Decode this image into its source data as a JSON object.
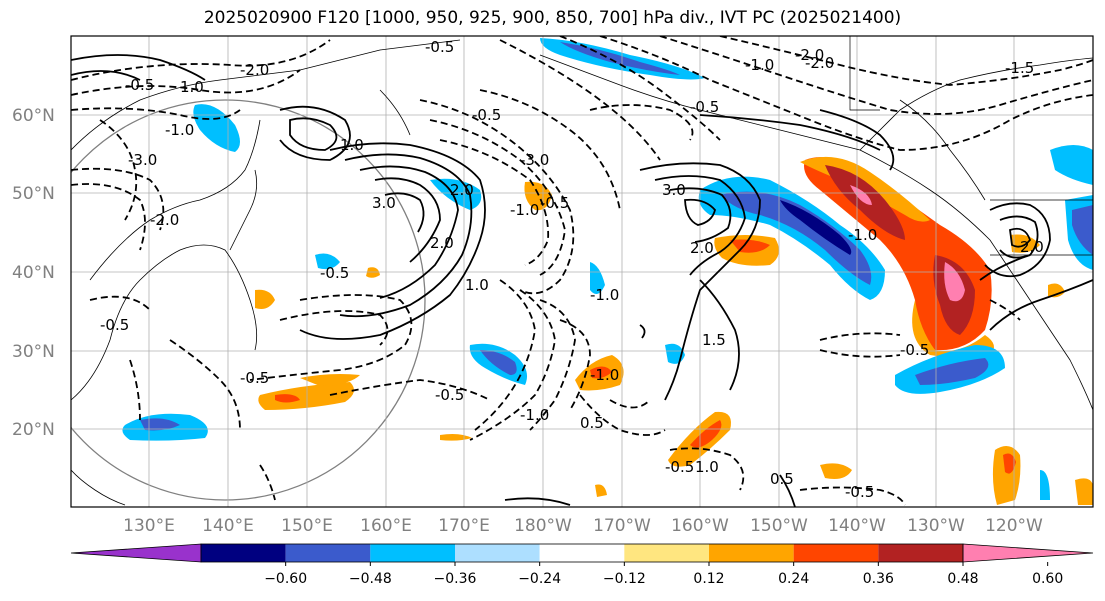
{
  "title": "2025020900 F120 [1000, 950, 925, 900, 850, 700] hPa div., IVT PC (2025021400)",
  "lat_labels": [
    "60°N",
    "50°N",
    "40°N",
    "30°N",
    "20°N"
  ],
  "lon_labels": [
    "130°E",
    "140°E",
    "150°E",
    "160°E",
    "170°E",
    "180°W",
    "170°W",
    "160°W",
    "150°W",
    "140°W",
    "130°W",
    "120°W"
  ],
  "colorbar": {
    "colors": [
      "#9932CC",
      "#000080",
      "#3B5BCC",
      "#00BFFF",
      "#ADDFFF",
      "#FFFFFF",
      "#FFE680",
      "#FFA500",
      "#FF4500",
      "#B22222",
      "#FF7FB0"
    ],
    "tick_labels": [
      "−0.60",
      "−0.48",
      "−0.36",
      "−0.24",
      "−0.12",
      "0.12",
      "0.24",
      "0.36",
      "0.48",
      "0.60"
    ]
  },
  "contour_labels": [
    "-0.5",
    "-2.0",
    "-0.5",
    "1.0",
    "-2.0",
    "-1.5",
    "-1.0",
    "-3.0",
    "-1.0",
    "-0.5",
    "1.0",
    "-3.0",
    "-2.0",
    "-0.5",
    "2.0",
    "3.0",
    "2.0",
    "1.0",
    "-0.5",
    "-1.0",
    "-1.0",
    "-0.5",
    "-0.5",
    "-0.5",
    "-1.0",
    "3.0",
    "2.0",
    "1.5",
    "-1.0",
    "-0.5",
    "-1.0",
    "0.5",
    "-0.5",
    "0.5",
    "-0.5",
    "2.0",
    "-0.5",
    "1.0",
    "-2.0"
  ]
}
